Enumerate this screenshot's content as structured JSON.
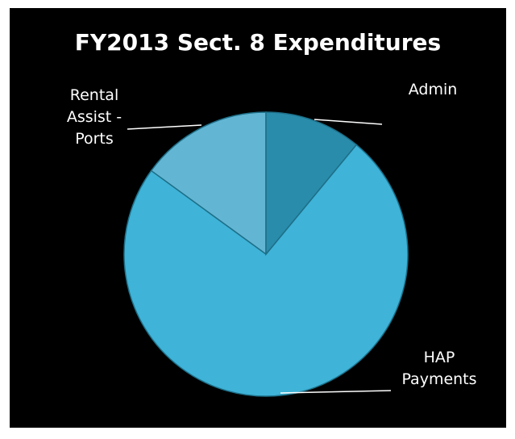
{
  "chart_data": {
    "type": "pie",
    "title": "FY2013 Sect. 8 Expenditures",
    "categories": [
      "Admin",
      "HAP Payments",
      "Rental Assist - Ports"
    ],
    "values": [
      11,
      74,
      15
    ],
    "colors": [
      "#2a8cab",
      "#3fb3d8",
      "#62b6d3"
    ]
  }
}
